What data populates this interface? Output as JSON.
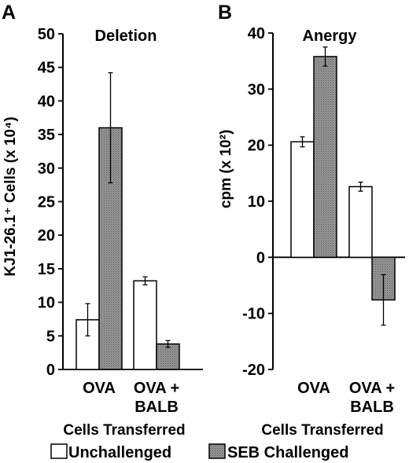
{
  "chart_data": [
    {
      "type": "bar",
      "panel_label": "A",
      "title": "Deletion",
      "ylabel": "KJ1-26.1⁺ Cells (x 10⁴)",
      "xlabel": "Cells Transferred",
      "categories": [
        "OVA",
        "OVA +\nBALB"
      ],
      "ylim": [
        0,
        50
      ],
      "yticks": [
        0,
        5,
        10,
        15,
        20,
        25,
        30,
        35,
        40,
        45,
        50
      ],
      "series": [
        {
          "name": "Unchallenged",
          "values": [
            7.4,
            13.2
          ],
          "errors": [
            2.4,
            0.6
          ]
        },
        {
          "name": "SEB Challenged",
          "values": [
            36.0,
            3.8
          ],
          "errors": [
            8.2,
            0.5
          ]
        }
      ]
    },
    {
      "type": "bar",
      "panel_label": "B",
      "title": "Anergy",
      "ylabel": "cpm (x 10²)",
      "xlabel": "Cells Transferred",
      "categories": [
        "OVA",
        "OVA +\nBALB"
      ],
      "ylim": [
        -20,
        40
      ],
      "yticks": [
        -20,
        -10,
        0,
        10,
        20,
        30,
        40
      ],
      "series": [
        {
          "name": "Unchallenged",
          "values": [
            20.6,
            12.6
          ],
          "errors": [
            0.9,
            0.8
          ]
        },
        {
          "name": "SEB Challenged",
          "values": [
            35.8,
            -7.6
          ],
          "errors": [
            1.7,
            4.5
          ]
        }
      ]
    }
  ],
  "legend": {
    "items": [
      {
        "label": "Unchallenged",
        "color": "#ffffff"
      },
      {
        "label": "SEB Challenged",
        "color": "#8f8f8f"
      }
    ]
  },
  "colors": {
    "unchallenged": "#ffffff",
    "challenged": "#8f8f8f",
    "ink": "#000000"
  }
}
